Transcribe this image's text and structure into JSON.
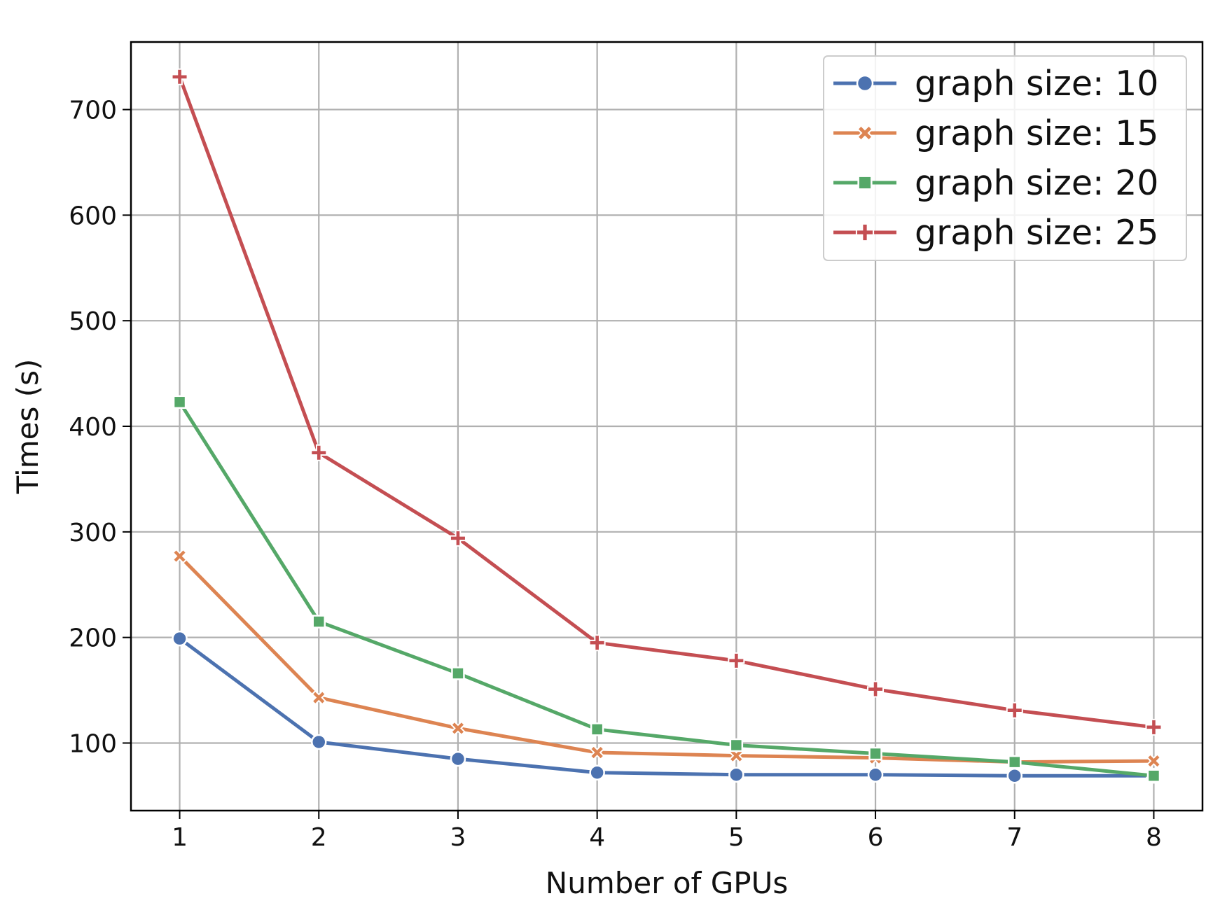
{
  "chart_data": {
    "type": "line",
    "title": "",
    "xlabel": "Number of GPUs",
    "ylabel": "Times (s)",
    "x": [
      1,
      2,
      3,
      4,
      5,
      6,
      7,
      8
    ],
    "xticks": [
      "1",
      "2",
      "3",
      "4",
      "5",
      "6",
      "7",
      "8"
    ],
    "yticks": [
      "100",
      "200",
      "300",
      "400",
      "500",
      "600",
      "700"
    ],
    "ytick_values": [
      100,
      200,
      300,
      400,
      500,
      600,
      700
    ],
    "xlim": [
      0.65,
      8.35
    ],
    "ylim": [
      36,
      764
    ],
    "grid": true,
    "legend_position": "top-right",
    "series": [
      {
        "name": "graph size: 10",
        "color": "#4c72b0",
        "marker": "circle",
        "values": [
          199,
          101,
          85,
          72,
          70,
          70,
          69,
          69
        ]
      },
      {
        "name": "graph size: 15",
        "color": "#dd8452",
        "marker": "x",
        "values": [
          277,
          143,
          114,
          91,
          88,
          86,
          82,
          83
        ]
      },
      {
        "name": "graph size: 20",
        "color": "#55a868",
        "marker": "square",
        "values": [
          423,
          215,
          166,
          113,
          98,
          90,
          82,
          69
        ]
      },
      {
        "name": "graph size: 25",
        "color": "#c44e52",
        "marker": "plus",
        "values": [
          731,
          375,
          294,
          195,
          178,
          151,
          131,
          115
        ]
      }
    ]
  }
}
